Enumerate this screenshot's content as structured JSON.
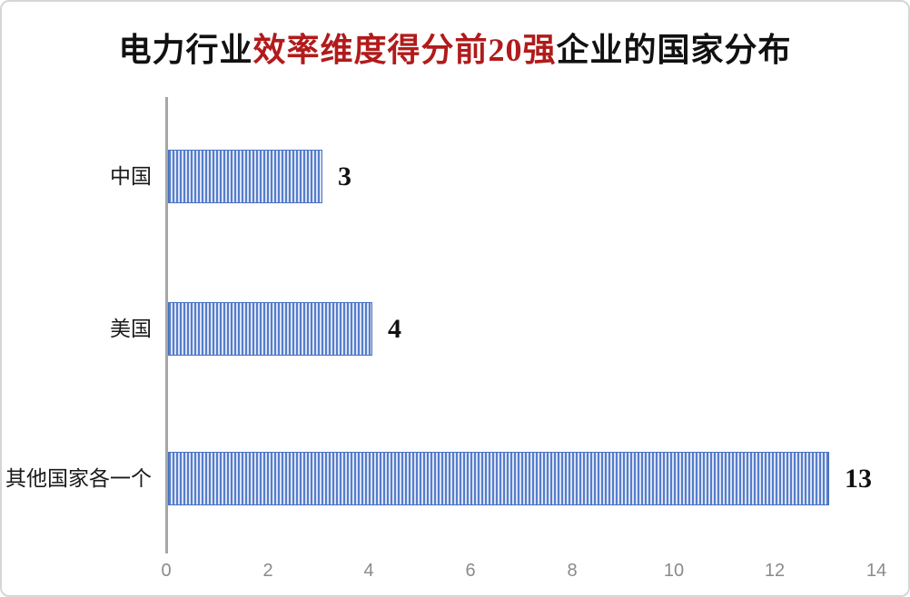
{
  "title": {
    "part1": "电力行业",
    "part2_highlight": "效率维度得分前20强",
    "part3": "企业的国家分布",
    "highlight_color": "#b11b1b"
  },
  "chart_data": {
    "type": "bar",
    "orientation": "horizontal",
    "title": "电力行业效率维度得分前20强企业的国家分布",
    "categories": [
      "中国",
      "美国",
      "其他国家各一个"
    ],
    "values": [
      3,
      4,
      13
    ],
    "data_labels": [
      "3",
      "4",
      "13"
    ],
    "xlabel": "",
    "ylabel": "",
    "xlim": [
      0,
      14
    ],
    "x_ticks": [
      0,
      2,
      4,
      6,
      8,
      10,
      12,
      14
    ],
    "grid": false,
    "legend": false,
    "bar_style": {
      "pattern": "vertical-stripes",
      "stripe_color": "#567dcb",
      "stripe_background": "#d9e2f4",
      "border_color": "#4472c4"
    },
    "axis_line_color": "#a6a6a6",
    "tick_label_color": "#8a8a8a",
    "data_label_color": "#111111"
  }
}
